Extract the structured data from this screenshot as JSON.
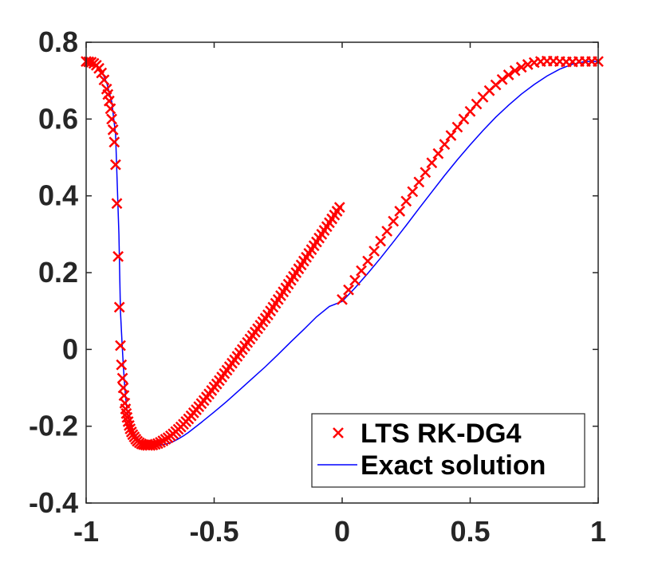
{
  "chart_data": {
    "type": "line",
    "title": "",
    "xlabel": "",
    "ylabel": "",
    "xlim": [
      -1,
      1
    ],
    "ylim": [
      -0.4,
      0.8
    ],
    "x_ticks": [
      -1,
      -0.5,
      0,
      0.5,
      1
    ],
    "y_ticks": [
      -0.4,
      -0.2,
      0,
      0.2,
      0.4,
      0.6,
      0.8
    ],
    "x_tick_labels": [
      "-1",
      "-0.5",
      "0",
      "0.5",
      "1"
    ],
    "y_tick_labels": [
      "-0.4",
      "-0.2",
      "0",
      "0.2",
      "0.4",
      "0.6",
      "0.8"
    ],
    "grid": false,
    "legend_position": "bottom-right",
    "series": [
      {
        "name": "LTS RK-DG4",
        "style": "marker-x",
        "color": "#ff0000",
        "x": [
          -1.0,
          -0.99,
          -0.98,
          -0.97,
          -0.96,
          -0.95,
          -0.94,
          -0.93,
          -0.92,
          -0.915,
          -0.91,
          -0.905,
          -0.9,
          -0.895,
          -0.89,
          -0.885,
          -0.88,
          -0.875,
          -0.87,
          -0.866,
          -0.862,
          -0.858,
          -0.855,
          -0.852,
          -0.849,
          -0.846,
          -0.843,
          -0.84,
          -0.836,
          -0.832,
          -0.828,
          -0.823,
          -0.818,
          -0.812,
          -0.806,
          -0.8,
          -0.792,
          -0.784,
          -0.776,
          -0.768,
          -0.76,
          -0.75,
          -0.74,
          -0.73,
          -0.72,
          -0.71,
          -0.7,
          -0.69,
          -0.68,
          -0.67,
          -0.66,
          -0.65,
          -0.64,
          -0.63,
          -0.62,
          -0.61,
          -0.6,
          -0.59,
          -0.58,
          -0.57,
          -0.56,
          -0.55,
          -0.54,
          -0.53,
          -0.52,
          -0.51,
          -0.5,
          -0.49,
          -0.48,
          -0.47,
          -0.46,
          -0.45,
          -0.44,
          -0.43,
          -0.42,
          -0.41,
          -0.4,
          -0.39,
          -0.38,
          -0.37,
          -0.36,
          -0.35,
          -0.34,
          -0.33,
          -0.32,
          -0.31,
          -0.3,
          -0.29,
          -0.28,
          -0.27,
          -0.26,
          -0.25,
          -0.24,
          -0.23,
          -0.22,
          -0.21,
          -0.2,
          -0.19,
          -0.18,
          -0.17,
          -0.16,
          -0.15,
          -0.14,
          -0.13,
          -0.12,
          -0.11,
          -0.1,
          -0.09,
          -0.08,
          -0.07,
          -0.06,
          -0.05,
          -0.04,
          -0.03,
          -0.02,
          -0.01,
          0.0,
          0.025,
          0.05,
          0.075,
          0.1,
          0.125,
          0.15,
          0.175,
          0.2,
          0.225,
          0.25,
          0.275,
          0.3,
          0.325,
          0.35,
          0.375,
          0.4,
          0.425,
          0.45,
          0.475,
          0.5,
          0.525,
          0.55,
          0.575,
          0.6,
          0.625,
          0.65,
          0.675,
          0.7,
          0.725,
          0.75,
          0.775,
          0.8,
          0.825,
          0.85,
          0.875,
          0.9,
          0.925,
          0.95,
          0.975,
          1.0
        ],
        "y": [
          0.75,
          0.749,
          0.748,
          0.745,
          0.74,
          0.732,
          0.72,
          0.702,
          0.678,
          0.664,
          0.647,
          0.627,
          0.6,
          0.572,
          0.54,
          0.481,
          0.38,
          0.242,
          0.11,
          0.01,
          -0.04,
          -0.075,
          -0.1,
          -0.12,
          -0.14,
          -0.155,
          -0.167,
          -0.177,
          -0.188,
          -0.198,
          -0.207,
          -0.215,
          -0.222,
          -0.228,
          -0.234,
          -0.239,
          -0.243,
          -0.246,
          -0.248,
          -0.249,
          -0.25,
          -0.25,
          -0.249,
          -0.247,
          -0.245,
          -0.242,
          -0.238,
          -0.234,
          -0.23,
          -0.225,
          -0.22,
          -0.214,
          -0.208,
          -0.202,
          -0.195,
          -0.188,
          -0.181,
          -0.173,
          -0.165,
          -0.157,
          -0.149,
          -0.141,
          -0.133,
          -0.124,
          -0.116,
          -0.107,
          -0.098,
          -0.09,
          -0.081,
          -0.072,
          -0.063,
          -0.054,
          -0.045,
          -0.036,
          -0.027,
          -0.018,
          -0.009,
          0.0,
          0.009,
          0.018,
          0.027,
          0.036,
          0.045,
          0.054,
          0.063,
          0.072,
          0.081,
          0.09,
          0.1,
          0.11,
          0.12,
          0.13,
          0.14,
          0.15,
          0.16,
          0.17,
          0.18,
          0.19,
          0.2,
          0.21,
          0.22,
          0.23,
          0.24,
          0.25,
          0.26,
          0.27,
          0.28,
          0.29,
          0.3,
          0.31,
          0.32,
          0.33,
          0.34,
          0.35,
          0.36,
          0.37,
          0.13,
          0.155,
          0.18,
          0.205,
          0.23,
          0.256,
          0.282,
          0.308,
          0.334,
          0.36,
          0.386,
          0.411,
          0.436,
          0.461,
          0.486,
          0.51,
          0.534,
          0.557,
          0.579,
          0.6,
          0.62,
          0.639,
          0.657,
          0.674,
          0.689,
          0.703,
          0.715,
          0.726,
          0.735,
          0.742,
          0.747,
          0.75,
          0.751,
          0.751,
          0.75,
          0.749,
          0.749,
          0.75,
          0.75,
          0.75,
          0.75
        ]
      },
      {
        "name": "Exact solution",
        "style": "line",
        "color": "#0000ff",
        "x": [
          -1.0,
          -0.98,
          -0.96,
          -0.94,
          -0.92,
          -0.9,
          -0.885,
          -0.872,
          -0.866,
          -0.86,
          -0.855,
          -0.85,
          -0.845,
          -0.84,
          -0.83,
          -0.82,
          -0.8,
          -0.78,
          -0.76,
          -0.74,
          -0.72,
          -0.7,
          -0.68,
          -0.66,
          -0.64,
          -0.62,
          -0.6,
          -0.55,
          -0.5,
          -0.45,
          -0.4,
          -0.35,
          -0.3,
          -0.25,
          -0.2,
          -0.15,
          -0.1,
          -0.05,
          0.0,
          0.05,
          0.1,
          0.15,
          0.2,
          0.25,
          0.3,
          0.35,
          0.4,
          0.45,
          0.5,
          0.55,
          0.6,
          0.65,
          0.7,
          0.75,
          0.8,
          0.85,
          0.9,
          0.95,
          1.0
        ],
        "y": [
          0.75,
          0.749,
          0.742,
          0.726,
          0.695,
          0.645,
          0.56,
          0.3,
          0.1,
          0.02,
          -0.04,
          -0.09,
          -0.13,
          -0.16,
          -0.19,
          -0.21,
          -0.232,
          -0.243,
          -0.248,
          -0.25,
          -0.25,
          -0.248,
          -0.245,
          -0.24,
          -0.233,
          -0.225,
          -0.216,
          -0.19,
          -0.163,
          -0.135,
          -0.105,
          -0.075,
          -0.045,
          -0.013,
          0.02,
          0.052,
          0.085,
          0.112,
          0.125,
          0.16,
          0.198,
          0.238,
          0.28,
          0.323,
          0.367,
          0.41,
          0.453,
          0.494,
          0.533,
          0.57,
          0.605,
          0.636,
          0.665,
          0.69,
          0.712,
          0.73,
          0.743,
          0.75,
          0.75
        ]
      }
    ]
  }
}
